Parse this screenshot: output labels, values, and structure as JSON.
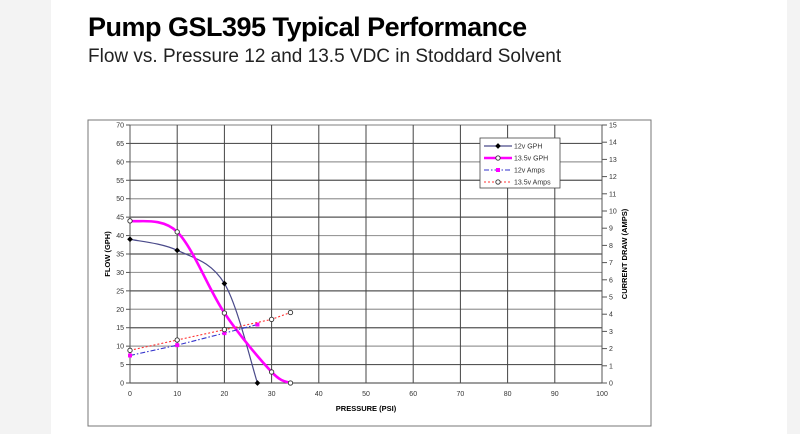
{
  "title": "Pump GSL395 Typical Performance",
  "subtitle": "Flow vs. Pressure 12 and 13.5 VDC in Stoddard Solvent",
  "chart_data": {
    "type": "line",
    "xlabel": "PRESSURE (PSI)",
    "ylabel": "FLOW (GPH)",
    "y2label": "CURRENT DRAW (AMPS)",
    "xlim": [
      0,
      100
    ],
    "ylim": [
      0,
      70
    ],
    "y2lim": [
      0,
      15
    ],
    "xticks": [
      0,
      10,
      20,
      30,
      40,
      50,
      60,
      70,
      80,
      90,
      100
    ],
    "yticks": [
      0,
      5,
      10,
      15,
      20,
      25,
      30,
      35,
      40,
      45,
      50,
      55,
      60,
      65,
      70
    ],
    "y2ticks": [
      0,
      1,
      2,
      3,
      4,
      5,
      6,
      7,
      8,
      9,
      10,
      11,
      12,
      13,
      14,
      15
    ],
    "grid": true,
    "legend_position": "top-right",
    "series": [
      {
        "name": "12v GPH",
        "axis": "left",
        "color": "#4a4a8a",
        "style": "solid",
        "marker": "filled-black",
        "x": [
          0,
          10,
          20,
          27
        ],
        "y": [
          39,
          36,
          27,
          0
        ]
      },
      {
        "name": "13.5v GPH",
        "axis": "left",
        "color": "#ff00ff",
        "style": "solid-thick",
        "marker": "open",
        "x": [
          0,
          10,
          20,
          30,
          34
        ],
        "y": [
          44,
          41,
          19,
          3,
          0
        ]
      },
      {
        "name": "12v Amps",
        "axis": "right",
        "color": "#3333cc",
        "style": "dash-dot",
        "marker": "filled-magenta",
        "x": [
          0,
          10,
          20,
          27
        ],
        "y": [
          1.6,
          2.2,
          2.9,
          3.4
        ]
      },
      {
        "name": "13.5v Amps",
        "axis": "right",
        "color": "#ff3333",
        "style": "dotted",
        "marker": "open",
        "x": [
          0,
          10,
          20,
          30,
          34
        ],
        "y": [
          1.9,
          2.5,
          3.1,
          3.7,
          4.1
        ]
      }
    ]
  }
}
